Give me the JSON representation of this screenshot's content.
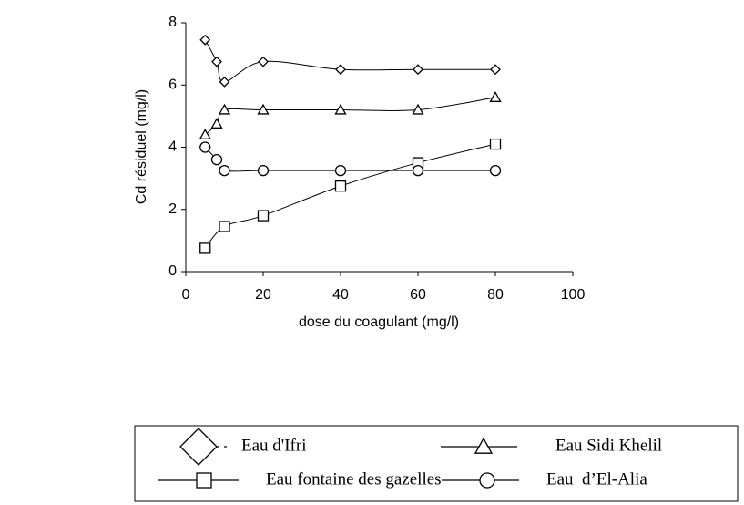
{
  "chart_data": {
    "type": "line",
    "xlabel": "dose du coagulant (mg/l)",
    "ylabel": "Cd résiduel (mg/l)",
    "xlim": [
      0,
      100
    ],
    "xticks": [
      0,
      20,
      40,
      60,
      80,
      100
    ],
    "ylim": [
      0,
      8
    ],
    "yticks": [
      0,
      2,
      4,
      6,
      8
    ],
    "smooth": true,
    "series": [
      {
        "name": "Eau d'Ifri",
        "color": "#000000",
        "marker": "diamond",
        "x": [
          5,
          8,
          10,
          20,
          40,
          60,
          80
        ],
        "values": [
          7.45,
          6.75,
          6.1,
          6.75,
          6.5,
          6.5,
          6.5
        ]
      },
      {
        "name": "Eau Sidi Khelil",
        "color": "#000000",
        "marker": "triangle",
        "x": [
          5,
          8,
          10,
          20,
          40,
          60,
          80
        ],
        "values": [
          4.4,
          4.75,
          5.2,
          5.2,
          5.2,
          5.2,
          5.6
        ]
      },
      {
        "name": "Eau fontaine des gazelles",
        "color": "#000000",
        "marker": "square",
        "x": [
          5,
          10,
          20,
          40,
          60,
          80
        ],
        "values": [
          0.75,
          1.45,
          1.8,
          2.75,
          3.5,
          4.1
        ]
      },
      {
        "name": "Eau  d’El-Alia",
        "color": "#000000",
        "marker": "circle",
        "x": [
          5,
          8,
          10,
          20,
          40,
          60,
          80
        ],
        "values": [
          4.0,
          3.6,
          3.25,
          3.25,
          3.25,
          3.25,
          3.25
        ]
      }
    ]
  }
}
